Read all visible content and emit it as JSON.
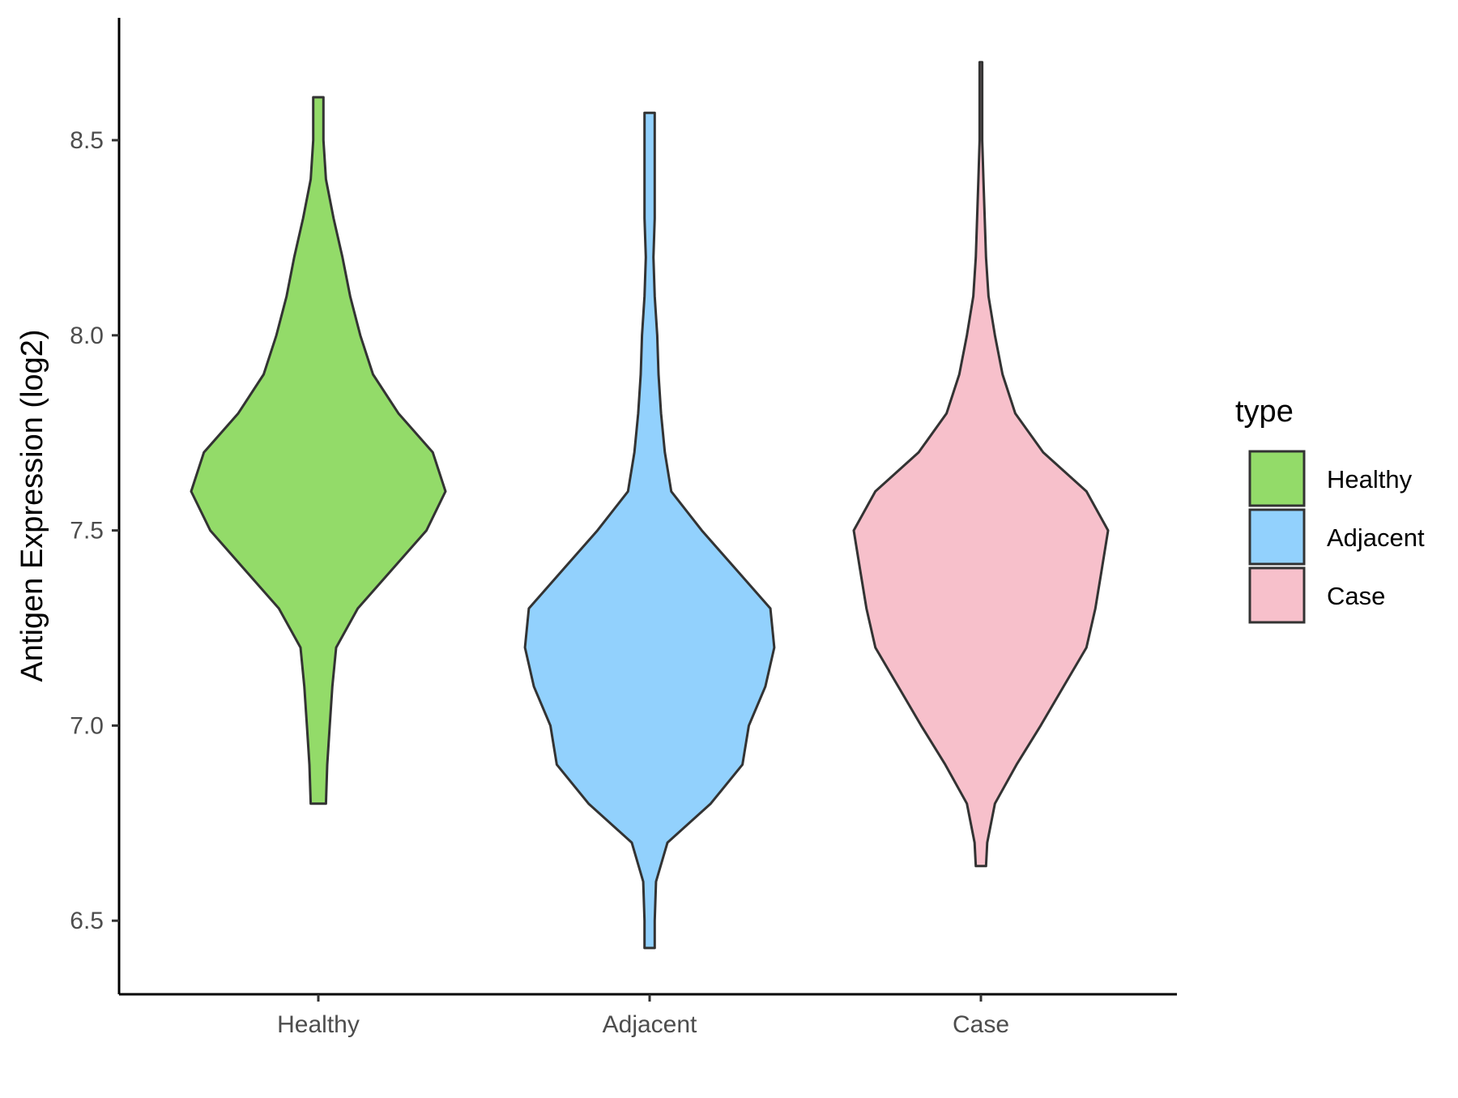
{
  "chart_data": {
    "type": "violin",
    "title": "",
    "xlabel": "",
    "ylabel": "Antigen Expression (log2)",
    "ylim": [
      6.3,
      8.8
    ],
    "yticks": [
      6.5,
      7.0,
      7.5,
      8.0,
      8.5
    ],
    "ytick_labels": [
      "6.5",
      "7.0",
      "7.5",
      "8.0",
      "8.5"
    ],
    "categories": [
      "Healthy",
      "Adjacent",
      "Case"
    ],
    "grid": false,
    "legend": {
      "title": "type",
      "position": "right",
      "entries": [
        "Healthy",
        "Adjacent",
        "Case"
      ]
    },
    "series": [
      {
        "name": "Healthy",
        "color": "#93DB69",
        "min": 6.8,
        "max": 8.61,
        "profile": [
          [
            6.8,
            0.06
          ],
          [
            6.9,
            0.07
          ],
          [
            7.0,
            0.09
          ],
          [
            7.1,
            0.11
          ],
          [
            7.2,
            0.14
          ],
          [
            7.3,
            0.31
          ],
          [
            7.4,
            0.58
          ],
          [
            7.5,
            0.85
          ],
          [
            7.6,
            1.0
          ],
          [
            7.7,
            0.9
          ],
          [
            7.8,
            0.63
          ],
          [
            7.9,
            0.43
          ],
          [
            8.0,
            0.33
          ],
          [
            8.1,
            0.25
          ],
          [
            8.2,
            0.19
          ],
          [
            8.3,
            0.12
          ],
          [
            8.4,
            0.06
          ],
          [
            8.5,
            0.04
          ],
          [
            8.61,
            0.04
          ]
        ]
      },
      {
        "name": "Adjacent",
        "color": "#92D1FD",
        "min": 6.43,
        "max": 8.57,
        "profile": [
          [
            6.43,
            0.04
          ],
          [
            6.5,
            0.04
          ],
          [
            6.6,
            0.05
          ],
          [
            6.7,
            0.14
          ],
          [
            6.8,
            0.48
          ],
          [
            6.9,
            0.73
          ],
          [
            7.0,
            0.78
          ],
          [
            7.1,
            0.91
          ],
          [
            7.2,
            0.98
          ],
          [
            7.3,
            0.95
          ],
          [
            7.4,
            0.68
          ],
          [
            7.5,
            0.41
          ],
          [
            7.6,
            0.17
          ],
          [
            7.7,
            0.12
          ],
          [
            7.8,
            0.09
          ],
          [
            7.9,
            0.07
          ],
          [
            8.0,
            0.06
          ],
          [
            8.1,
            0.04
          ],
          [
            8.2,
            0.03
          ],
          [
            8.3,
            0.04
          ],
          [
            8.4,
            0.04
          ],
          [
            8.57,
            0.04
          ]
        ]
      },
      {
        "name": "Case",
        "color": "#F7C0CB",
        "min": 6.64,
        "max": 8.7,
        "profile": [
          [
            6.64,
            0.04
          ],
          [
            6.7,
            0.05
          ],
          [
            6.8,
            0.11
          ],
          [
            6.9,
            0.28
          ],
          [
            7.0,
            0.47
          ],
          [
            7.1,
            0.65
          ],
          [
            7.2,
            0.83
          ],
          [
            7.3,
            0.9
          ],
          [
            7.4,
            0.95
          ],
          [
            7.5,
            1.0
          ],
          [
            7.6,
            0.83
          ],
          [
            7.7,
            0.49
          ],
          [
            7.8,
            0.27
          ],
          [
            7.9,
            0.17
          ],
          [
            8.0,
            0.11
          ],
          [
            8.1,
            0.06
          ],
          [
            8.2,
            0.04
          ],
          [
            8.3,
            0.03
          ],
          [
            8.4,
            0.02
          ],
          [
            8.5,
            0.01
          ],
          [
            8.7,
            0.01
          ]
        ]
      }
    ]
  }
}
